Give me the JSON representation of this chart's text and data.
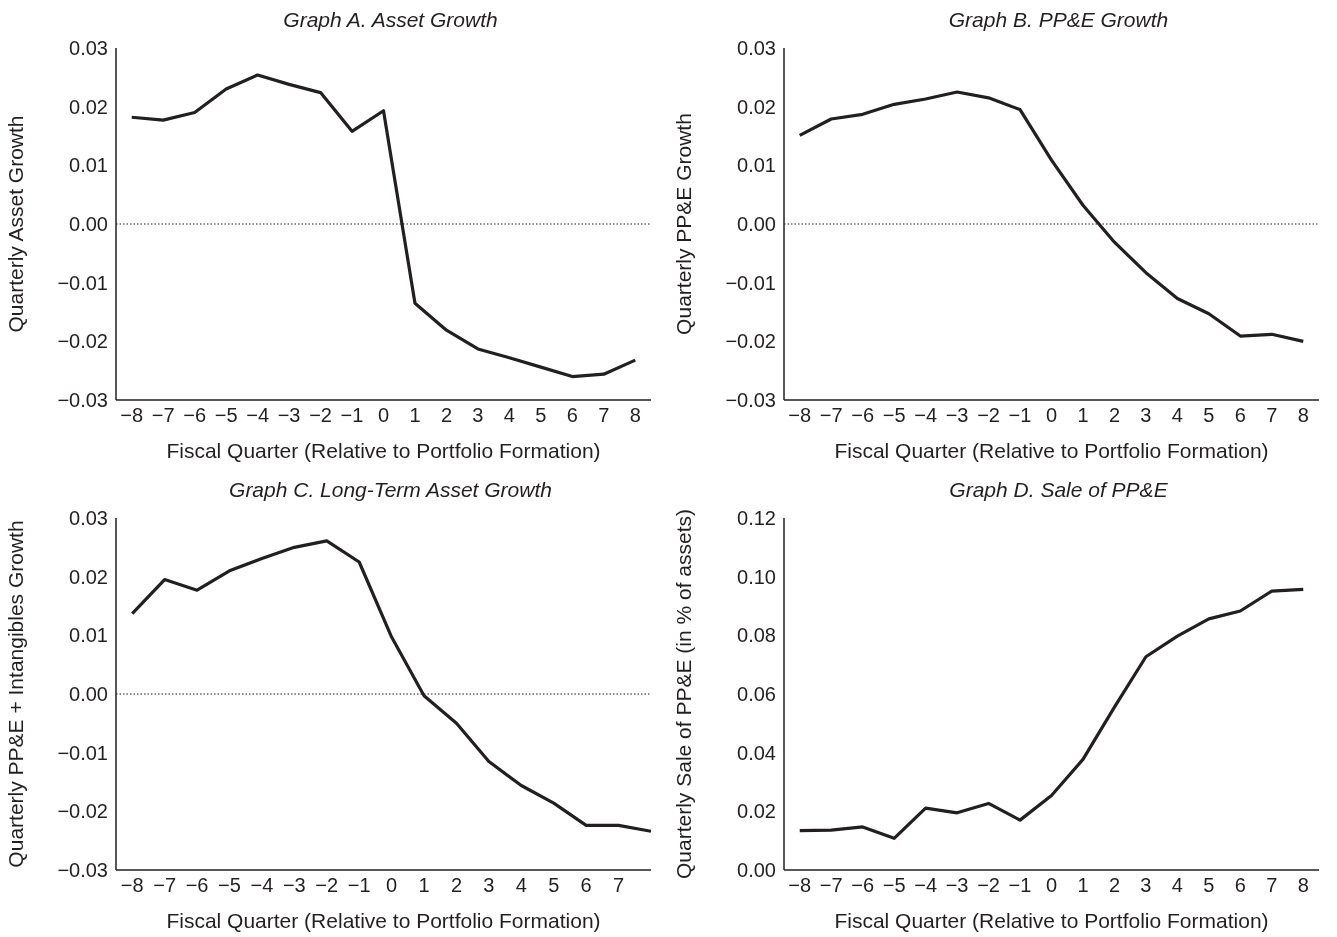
{
  "chart_data": [
    {
      "type": "line",
      "title": "Graph A. Asset Growth",
      "xlabel": "Fiscal Quarter (Relative to Portfolio Formation)",
      "ylabel": "Quarterly Asset Growth",
      "x": [
        -8,
        -7,
        -6,
        -5,
        -4,
        -3,
        -2,
        -1,
        0,
        1,
        2,
        3,
        4,
        5,
        6,
        7,
        8
      ],
      "series": [
        {
          "color": "#231f20",
          "values": [
            0.0182,
            0.0177,
            0.019,
            0.023,
            0.0254,
            0.0238,
            0.0224,
            0.0158,
            0.0193,
            -0.0135,
            -0.0181,
            -0.0213,
            -0.0228,
            -0.0244,
            -0.026,
            -0.0256,
            -0.0232
          ]
        }
      ],
      "xlim": [
        -8.5,
        8.5
      ],
      "xticks": [
        {
          "value": -8,
          "label": "−8"
        },
        {
          "value": -7,
          "label": "−7"
        },
        {
          "value": -6,
          "label": "−6"
        },
        {
          "value": -5,
          "label": "−5"
        },
        {
          "value": -4,
          "label": "−4"
        },
        {
          "value": -3,
          "label": "−3"
        },
        {
          "value": -2,
          "label": "−2"
        },
        {
          "value": -1,
          "label": "−1"
        },
        0,
        1,
        2,
        3,
        4,
        5,
        6,
        7,
        8
      ],
      "ylim": [
        -0.03,
        0.03
      ],
      "yticks": [
        {
          "value": -0.03,
          "label": "−0.03"
        },
        {
          "value": -0.02,
          "label": "−0.02"
        },
        {
          "value": -0.01,
          "label": "−0.01"
        },
        {
          "value": 0,
          "label": "0.00"
        },
        {
          "value": 0.01,
          "label": "0.01"
        },
        {
          "value": 0.02,
          "label": "0.02"
        },
        {
          "value": 0.03,
          "label": "0.03"
        }
      ],
      "ref_lines": [
        {
          "axis": "y",
          "value": 0,
          "line_style": "dotted",
          "color": "#231f20"
        }
      ]
    },
    {
      "type": "line",
      "title": "Graph B. PP&E Growth",
      "xlabel": "Fiscal Quarter (Relative to Portfolio Formation)",
      "ylabel": "Quarterly PP&E Growth",
      "x": [
        -8,
        -7,
        -6,
        -5,
        -4,
        -3,
        -2,
        -1,
        0,
        1,
        2,
        3,
        4,
        5,
        6,
        7,
        8
      ],
      "series": [
        {
          "color": "#231f20",
          "values": [
            0.0151,
            0.0179,
            0.0187,
            0.0204,
            0.0213,
            0.0225,
            0.0215,
            0.0195,
            0.0109,
            0.0032,
            -0.0031,
            -0.0083,
            -0.0127,
            -0.0153,
            -0.0191,
            -0.0188,
            -0.02
          ]
        }
      ],
      "xlim": [
        -8.5,
        8.5
      ],
      "xticks": [
        {
          "value": -8,
          "label": "−8"
        },
        {
          "value": -7,
          "label": "−7"
        },
        {
          "value": -6,
          "label": "−6"
        },
        {
          "value": -5,
          "label": "−5"
        },
        {
          "value": -4,
          "label": "−4"
        },
        {
          "value": -3,
          "label": "−3"
        },
        {
          "value": -2,
          "label": "−2"
        },
        {
          "value": -1,
          "label": "−1"
        },
        0,
        1,
        2,
        3,
        4,
        5,
        6,
        7,
        8
      ],
      "ylim": [
        -0.03,
        0.03
      ],
      "yticks": [
        {
          "value": -0.03,
          "label": "−0.03"
        },
        {
          "value": -0.02,
          "label": "−0.02"
        },
        {
          "value": -0.01,
          "label": "−0.01"
        },
        {
          "value": 0,
          "label": "0.00"
        },
        {
          "value": 0.01,
          "label": "0.01"
        },
        {
          "value": 0.02,
          "label": "0.02"
        },
        {
          "value": 0.03,
          "label": "0.03"
        }
      ],
      "ref_lines": [
        {
          "axis": "y",
          "value": 0,
          "line_style": "dotted",
          "color": "#231f20"
        }
      ]
    },
    {
      "type": "line",
      "title": "Graph C. Long-Term Asset Growth",
      "xlabel": "Fiscal Quarter (Relative to Portfolio Formation)",
      "ylabel": "Quarterly PP&E + Intangibles Growth",
      "x": [
        -8,
        -7,
        -6,
        -5,
        -4,
        -3,
        -2,
        -1,
        0,
        1,
        2,
        3,
        4,
        5,
        6,
        7,
        8
      ],
      "series": [
        {
          "color": "#231f20",
          "values": [
            0.0137,
            0.0195,
            0.0177,
            0.021,
            0.0231,
            0.025,
            0.0261,
            0.0225,
            0.0097,
            -0.0003,
            -0.005,
            -0.0115,
            -0.0156,
            -0.0186,
            -0.0224,
            -0.0224,
            -0.0234
          ]
        }
      ],
      "xlim": [
        -8.5,
        8
      ],
      "xticks": [
        {
          "value": -8,
          "label": "−8"
        },
        {
          "value": -7,
          "label": "−7"
        },
        {
          "value": -6,
          "label": "−6"
        },
        {
          "value": -5,
          "label": "−5"
        },
        {
          "value": -4,
          "label": "−4"
        },
        {
          "value": -3,
          "label": "−3"
        },
        {
          "value": -2,
          "label": "−2"
        },
        {
          "value": -1,
          "label": "−1"
        },
        0,
        1,
        2,
        3,
        4,
        5,
        6,
        7
      ],
      "ylim": [
        -0.03,
        0.03
      ],
      "yticks": [
        {
          "value": -0.03,
          "label": "−0.03"
        },
        {
          "value": -0.02,
          "label": "−0.02"
        },
        {
          "value": -0.01,
          "label": "−0.01"
        },
        {
          "value": 0,
          "label": "0.00"
        },
        {
          "value": 0.01,
          "label": "0.01"
        },
        {
          "value": 0.02,
          "label": "0.02"
        },
        {
          "value": 0.03,
          "label": "0.03"
        }
      ],
      "ref_lines": [
        {
          "axis": "y",
          "value": 0,
          "line_style": "dotted",
          "color": "#231f20"
        }
      ]
    },
    {
      "type": "line",
      "title": "Graph D. Sale of PP&E",
      "xlabel": "Fiscal Quarter (Relative to Portfolio Formation)",
      "ylabel": "Quarterly Sale of PP&E (in % of assets)",
      "x": [
        -8,
        -7,
        -6,
        -5,
        -4,
        -3,
        -2,
        -1,
        0,
        1,
        2,
        3,
        4,
        5,
        6,
        7,
        8
      ],
      "series": [
        {
          "color": "#231f20",
          "values": [
            0.0134,
            0.0136,
            0.0147,
            0.0108,
            0.0211,
            0.0195,
            0.0227,
            0.017,
            0.0254,
            0.0377,
            0.0555,
            0.0727,
            0.0797,
            0.0856,
            0.0883,
            0.0951,
            0.0957
          ]
        }
      ],
      "xlim": [
        -8.5,
        8.5
      ],
      "xticks": [
        {
          "value": -8,
          "label": "−8"
        },
        {
          "value": -7,
          "label": "−7"
        },
        {
          "value": -6,
          "label": "−6"
        },
        {
          "value": -5,
          "label": "−5"
        },
        {
          "value": -4,
          "label": "−4"
        },
        {
          "value": -3,
          "label": "−3"
        },
        {
          "value": -2,
          "label": "−2"
        },
        {
          "value": -1,
          "label": "−1"
        },
        0,
        1,
        2,
        3,
        4,
        5,
        6,
        7,
        8
      ],
      "ylim": [
        0,
        0.12
      ],
      "yticks": [
        {
          "value": 0,
          "label": "0.00"
        },
        {
          "value": 0.02,
          "label": "0.02"
        },
        {
          "value": 0.04,
          "label": "0.04"
        },
        {
          "value": 0.06,
          "label": "0.06"
        },
        {
          "value": 0.08,
          "label": "0.08"
        },
        {
          "value": 0.1,
          "label": "0.10"
        },
        {
          "value": 0.12,
          "label": "0.12"
        }
      ]
    }
  ]
}
